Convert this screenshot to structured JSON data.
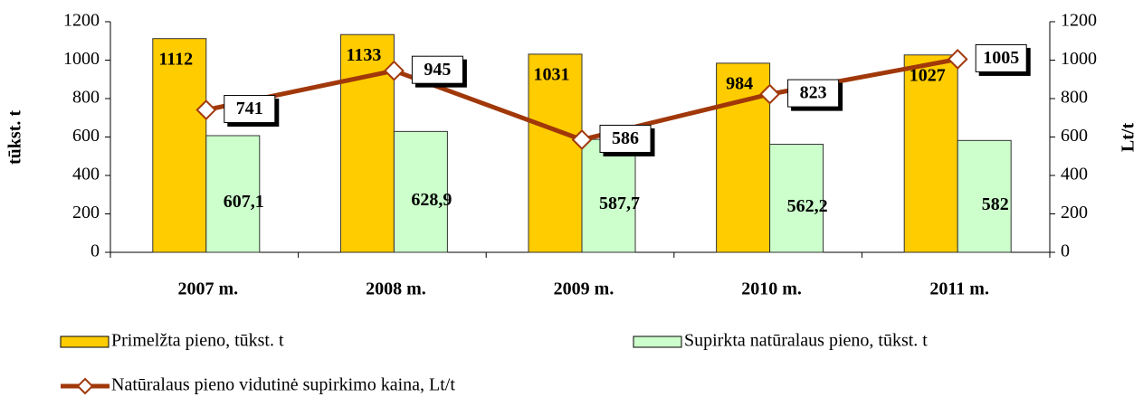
{
  "chart_data": {
    "type": "bar",
    "categories": [
      "2007 m.",
      "2008 m.",
      "2009 m.",
      "2010 m.",
      "2011 m."
    ],
    "series": [
      {
        "name": "Primelžta pieno, tūkst. t",
        "color": "#ffcc00",
        "values": [
          1112,
          1133,
          1031,
          984,
          1027
        ]
      },
      {
        "name": "Supirkta natūralaus pieno, tūkst. t",
        "color": "#ccffcc",
        "values": [
          607.1,
          628.9,
          587.7,
          562.2,
          582
        ],
        "value_labels": [
          "607,1",
          "628,9",
          "587,7",
          "562,2",
          "582"
        ]
      },
      {
        "name": "Natūralaus pieno vidutinė supirkimo kaina, Lt/t",
        "type": "line",
        "axis": "y2",
        "color": "#a0380a",
        "values": [
          741,
          945,
          586,
          823,
          1005
        ]
      }
    ],
    "ylabel": "tūkst. t",
    "y2label": "Lt/t",
    "ylim": [
      0,
      1200
    ],
    "yticks": [
      0,
      200,
      400,
      600,
      800,
      1000,
      1200
    ],
    "y2lim": [
      0,
      1200
    ],
    "y2ticks": [
      0,
      200,
      400,
      600,
      800,
      1000,
      1200
    ],
    "legend": "bottom"
  }
}
